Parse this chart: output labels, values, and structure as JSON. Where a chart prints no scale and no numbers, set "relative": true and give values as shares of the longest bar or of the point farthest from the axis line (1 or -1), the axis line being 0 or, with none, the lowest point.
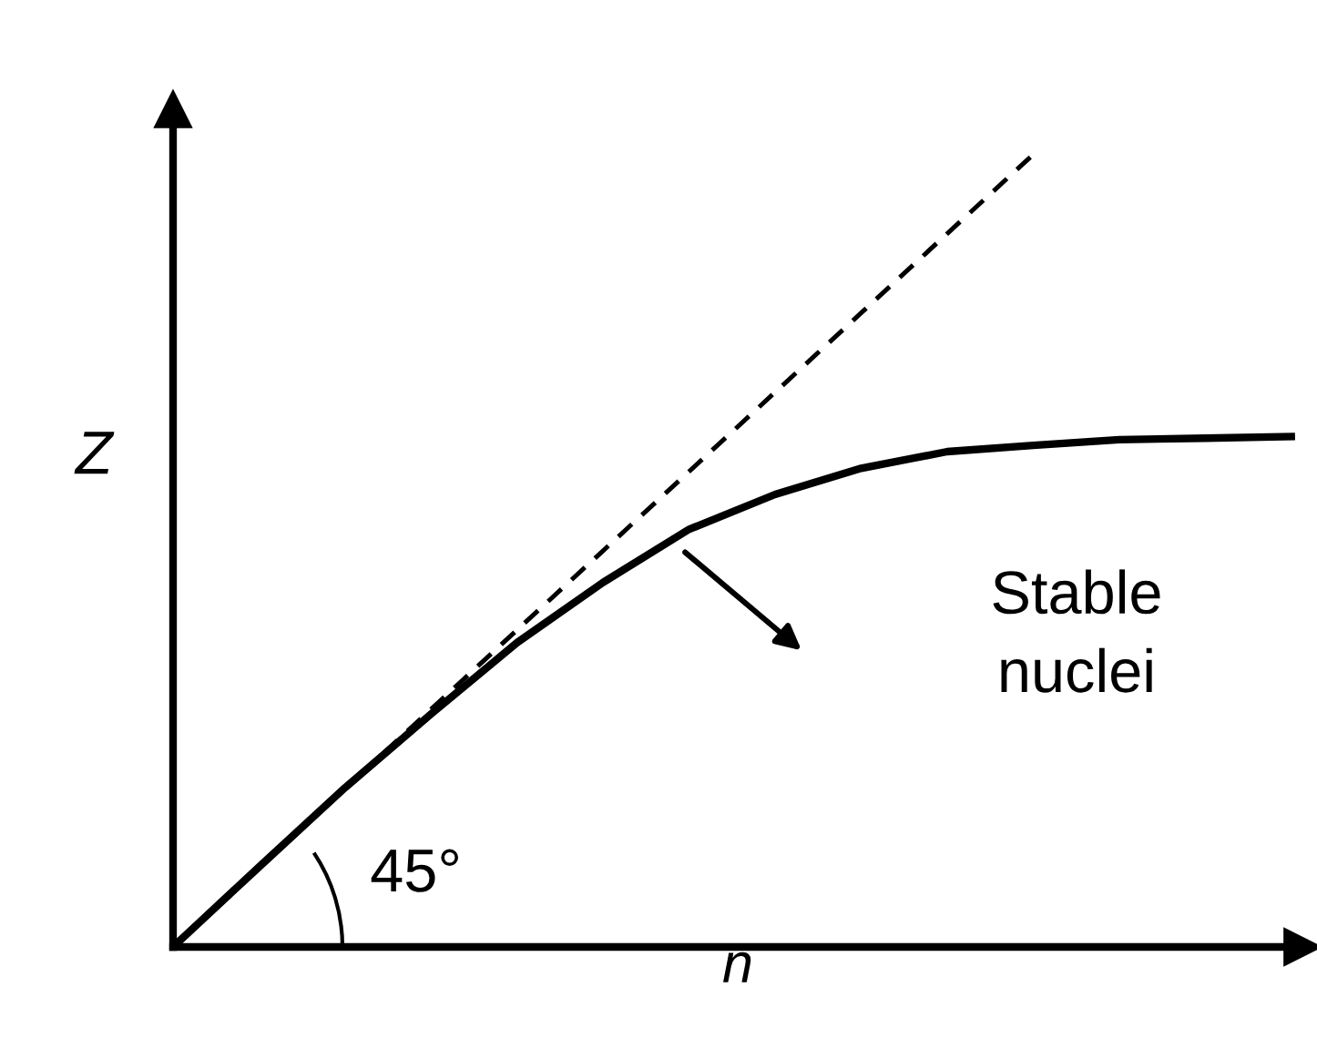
{
  "chart_data": {
    "type": "line",
    "relative": true,
    "xlabel": "n",
    "ylabel": "Z",
    "tick_labels": false,
    "categories": [
      null,
      null,
      null,
      null,
      null,
      null,
      null,
      null,
      null,
      null,
      null,
      null,
      null,
      null
    ],
    "series": [
      {
        "color": "#000000",
        "line_style": "solid",
        "values": [
          0,
          0.101,
          0.201,
          0.294,
          0.384,
          0.46,
          0.527,
          0.571,
          0.604,
          0.625,
          0.633,
          0.64,
          0.642,
          0.644
        ]
      },
      {
        "color": "#000000",
        "line_style": "dashed",
        "values": [
          0,
          0.1,
          0.2,
          0.3,
          0.4,
          0.5,
          0.6,
          0.7,
          0.8,
          0.9,
          1.0,
          null,
          null,
          null
        ]
      }
    ],
    "annotations": [
      "Stable\nnuclei",
      "45°"
    ]
  }
}
